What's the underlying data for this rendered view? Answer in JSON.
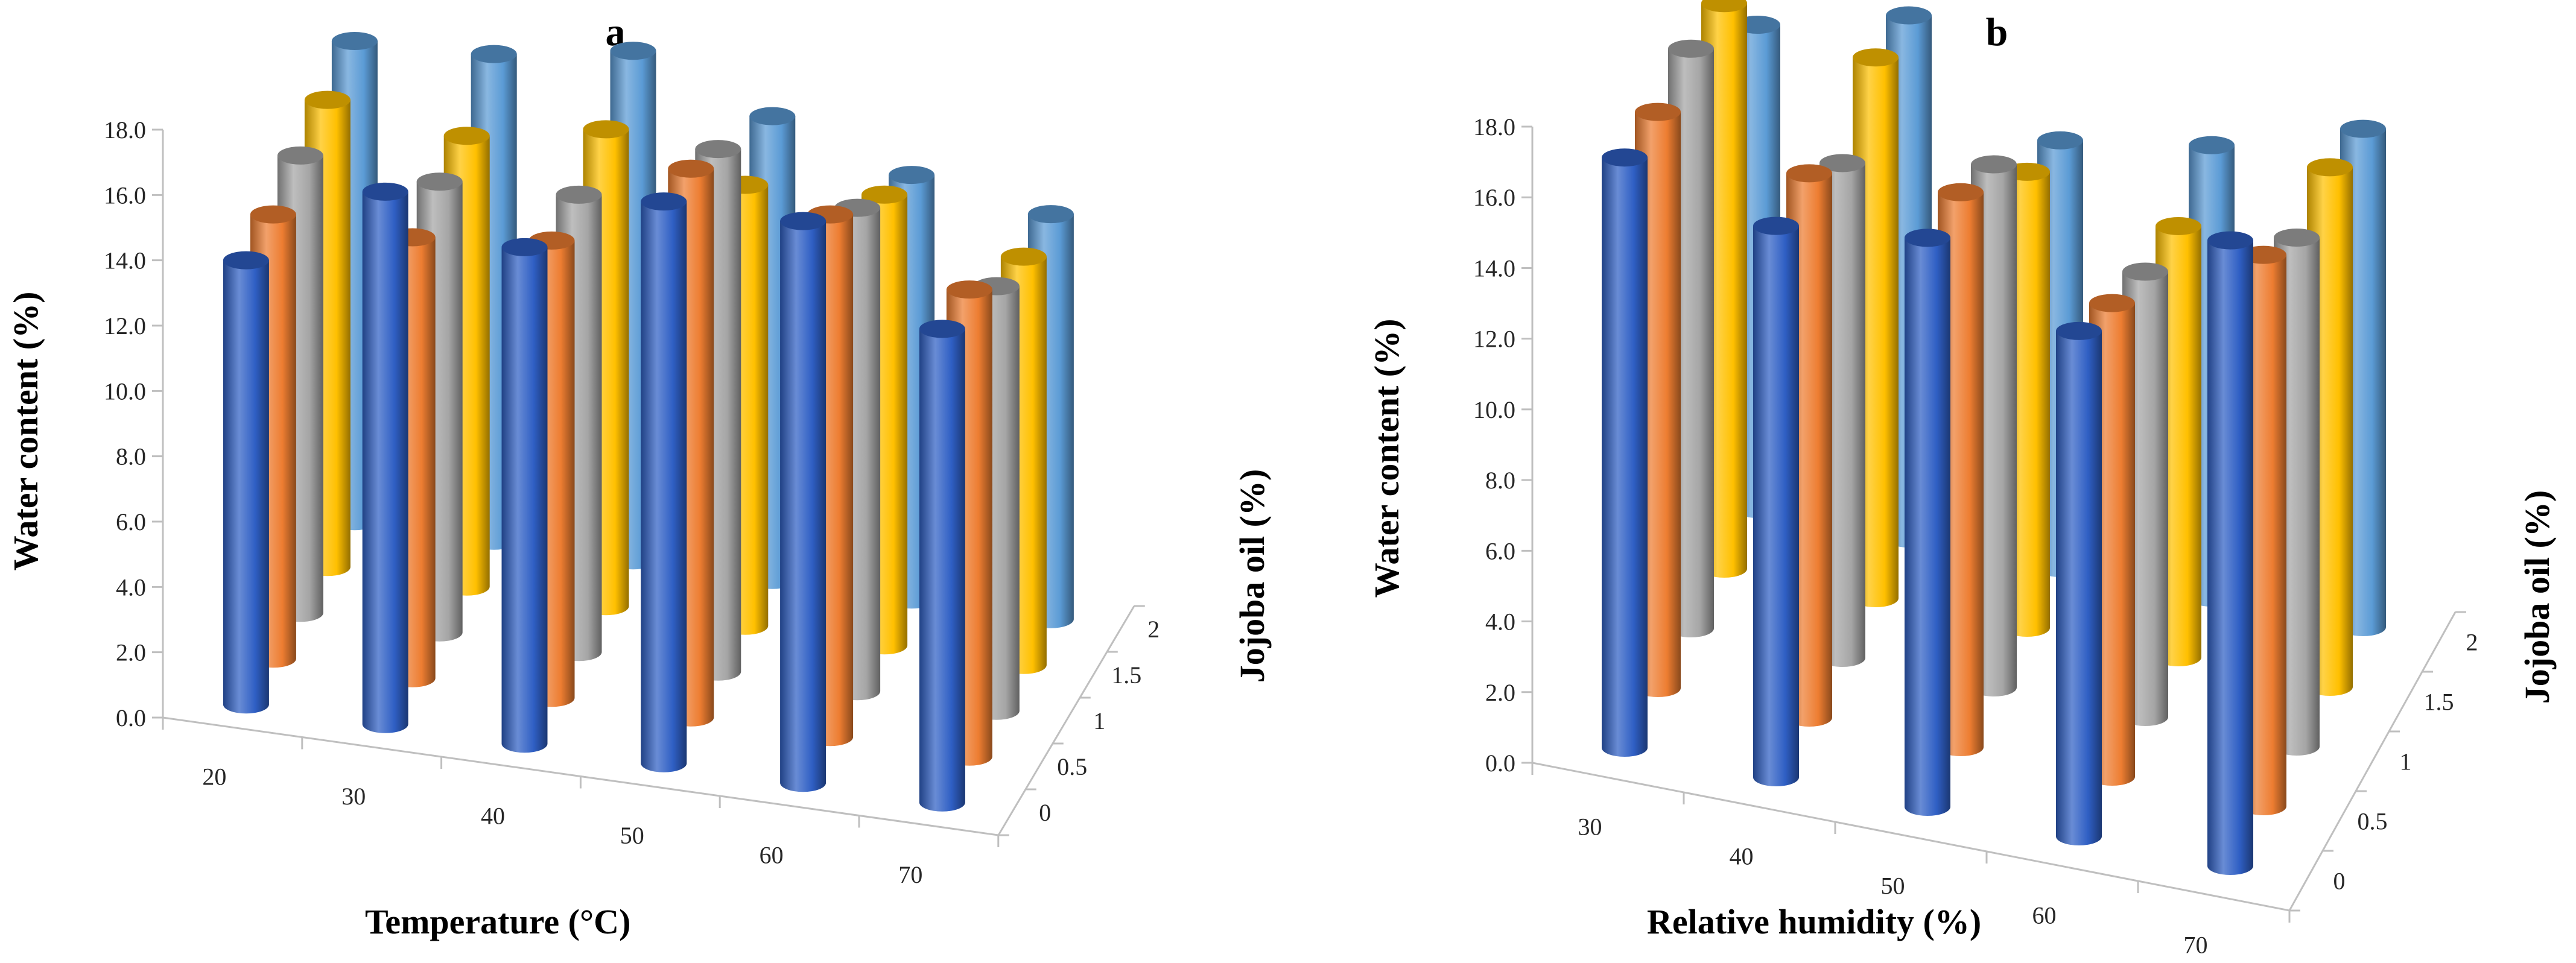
{
  "colors": {
    "series": [
      "#2f5fc4",
      "#ed7d31",
      "#a5a5a5",
      "#ffc000",
      "#5b9bd5"
    ]
  },
  "chart_data": [
    {
      "type": "bar3d-cylinder",
      "panel_label": "a",
      "xlabel": "Temperature (°C)",
      "ylabel": "Water content (%)",
      "zlabel": "Jojoba oil (%)",
      "ylim": [
        0,
        18
      ],
      "yticks": [
        "0.0",
        "2.0",
        "4.0",
        "6.0",
        "8.0",
        "10.0",
        "12.0",
        "14.0",
        "16.0",
        "18.0"
      ],
      "categories": [
        "20",
        "30",
        "40",
        "50",
        "60",
        "70"
      ],
      "depth_categories": [
        "0",
        "0.5",
        "1",
        "1.5",
        "2"
      ],
      "series": [
        {
          "name": "0",
          "values": [
            13.6,
            16.3,
            15.2,
            17.2,
            17.2,
            14.5
          ]
        },
        {
          "name": "0.5",
          "values": [
            13.6,
            13.5,
            14.0,
            16.8,
            16.0,
            14.3
          ]
        },
        {
          "name": "1",
          "values": [
            14.0,
            13.8,
            14.0,
            16.0,
            14.8,
            13.0
          ]
        },
        {
          "name": "1.5",
          "values": [
            14.3,
            13.8,
            14.6,
            13.5,
            13.8,
            12.5
          ]
        },
        {
          "name": "2",
          "values": [
            14.7,
            14.9,
            15.6,
            14.2,
            13.0,
            12.4
          ]
        }
      ]
    },
    {
      "type": "bar3d-cylinder",
      "panel_label": "b",
      "xlabel": "Relative humidity  (%)",
      "ylabel": "Water content (%)",
      "zlabel": "Jojoba oil (%)",
      "ylim": [
        0,
        18
      ],
      "yticks": [
        "0.0",
        "2.0",
        "4.0",
        "6.0",
        "8.0",
        "10.0",
        "12.0",
        "14.0",
        "16.0",
        "18.0"
      ],
      "categories": [
        "30",
        "40",
        "50",
        "60",
        "70"
      ],
      "depth_categories": [
        "0",
        "0.5",
        "1",
        "1.5",
        "2"
      ],
      "series": [
        {
          "name": "0",
          "values": [
            16.7,
            15.6,
            16.1,
            14.3,
            17.7
          ]
        },
        {
          "name": "0.5",
          "values": [
            16.3,
            15.4,
            15.7,
            13.4,
            15.6
          ]
        },
        {
          "name": "1",
          "values": [
            16.4,
            14.0,
            14.8,
            12.6,
            14.4
          ]
        },
        {
          "name": "1.5",
          "values": [
            16.0,
            15.3,
            12.9,
            12.2,
            14.7
          ]
        },
        {
          "name": "2",
          "values": [
            13.7,
            14.8,
            12.1,
            12.8,
            14.1
          ]
        }
      ]
    }
  ]
}
